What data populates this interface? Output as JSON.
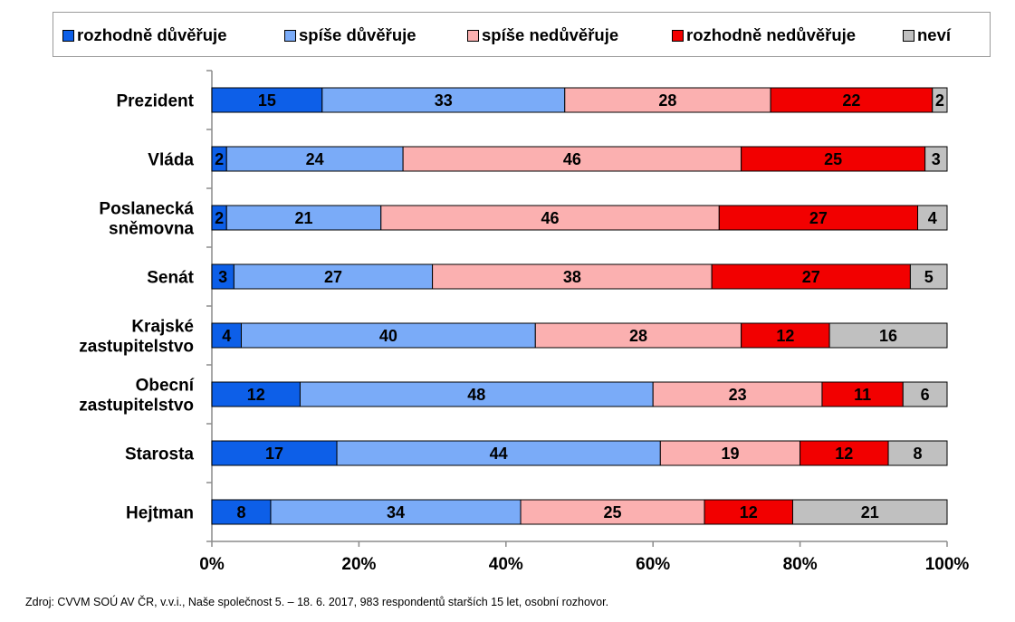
{
  "chart_data": {
    "type": "bar",
    "orientation": "horizontal",
    "stacked": true,
    "categories": [
      [
        "Prezident"
      ],
      [
        "Vláda"
      ],
      [
        "Poslanecká",
        "sněmovna"
      ],
      [
        "Senát"
      ],
      [
        "Krajské",
        "zastupitelstvo"
      ],
      [
        "Obecní",
        "zastupitelstvo"
      ],
      [
        "Starosta"
      ],
      [
        "Hejtman"
      ]
    ],
    "series": [
      {
        "name": "rozhodně důvěřuje",
        "color": "#0d5fe8",
        "values": [
          15,
          2,
          2,
          3,
          4,
          12,
          17,
          8
        ]
      },
      {
        "name": "spíše důvěřuje",
        "color": "#7aabf8",
        "values": [
          33,
          24,
          21,
          27,
          40,
          48,
          44,
          34
        ]
      },
      {
        "name": "spíše nedůvěřuje",
        "color": "#fbb0b0",
        "values": [
          28,
          46,
          46,
          38,
          28,
          23,
          19,
          25
        ]
      },
      {
        "name": "rozhodně nedůvěřuje",
        "color": "#f20000",
        "values": [
          22,
          25,
          27,
          27,
          12,
          11,
          12,
          12
        ]
      },
      {
        "name": "neví",
        "color": "#c0c0c0",
        "values": [
          2,
          3,
          4,
          5,
          16,
          6,
          8,
          21
        ]
      }
    ],
    "xlim": [
      0,
      100
    ],
    "xticks": [
      "0%",
      "20%",
      "40%",
      "60%",
      "80%",
      "100%"
    ],
    "legend_position": "top",
    "grid": false
  },
  "source_note": "Zdroj: CVVM SOÚ AV ČR, v.v.i., Naše společnost 5. – 18. 6. 2017, 983 respondentů starších 15 let, osobní rozhovor."
}
